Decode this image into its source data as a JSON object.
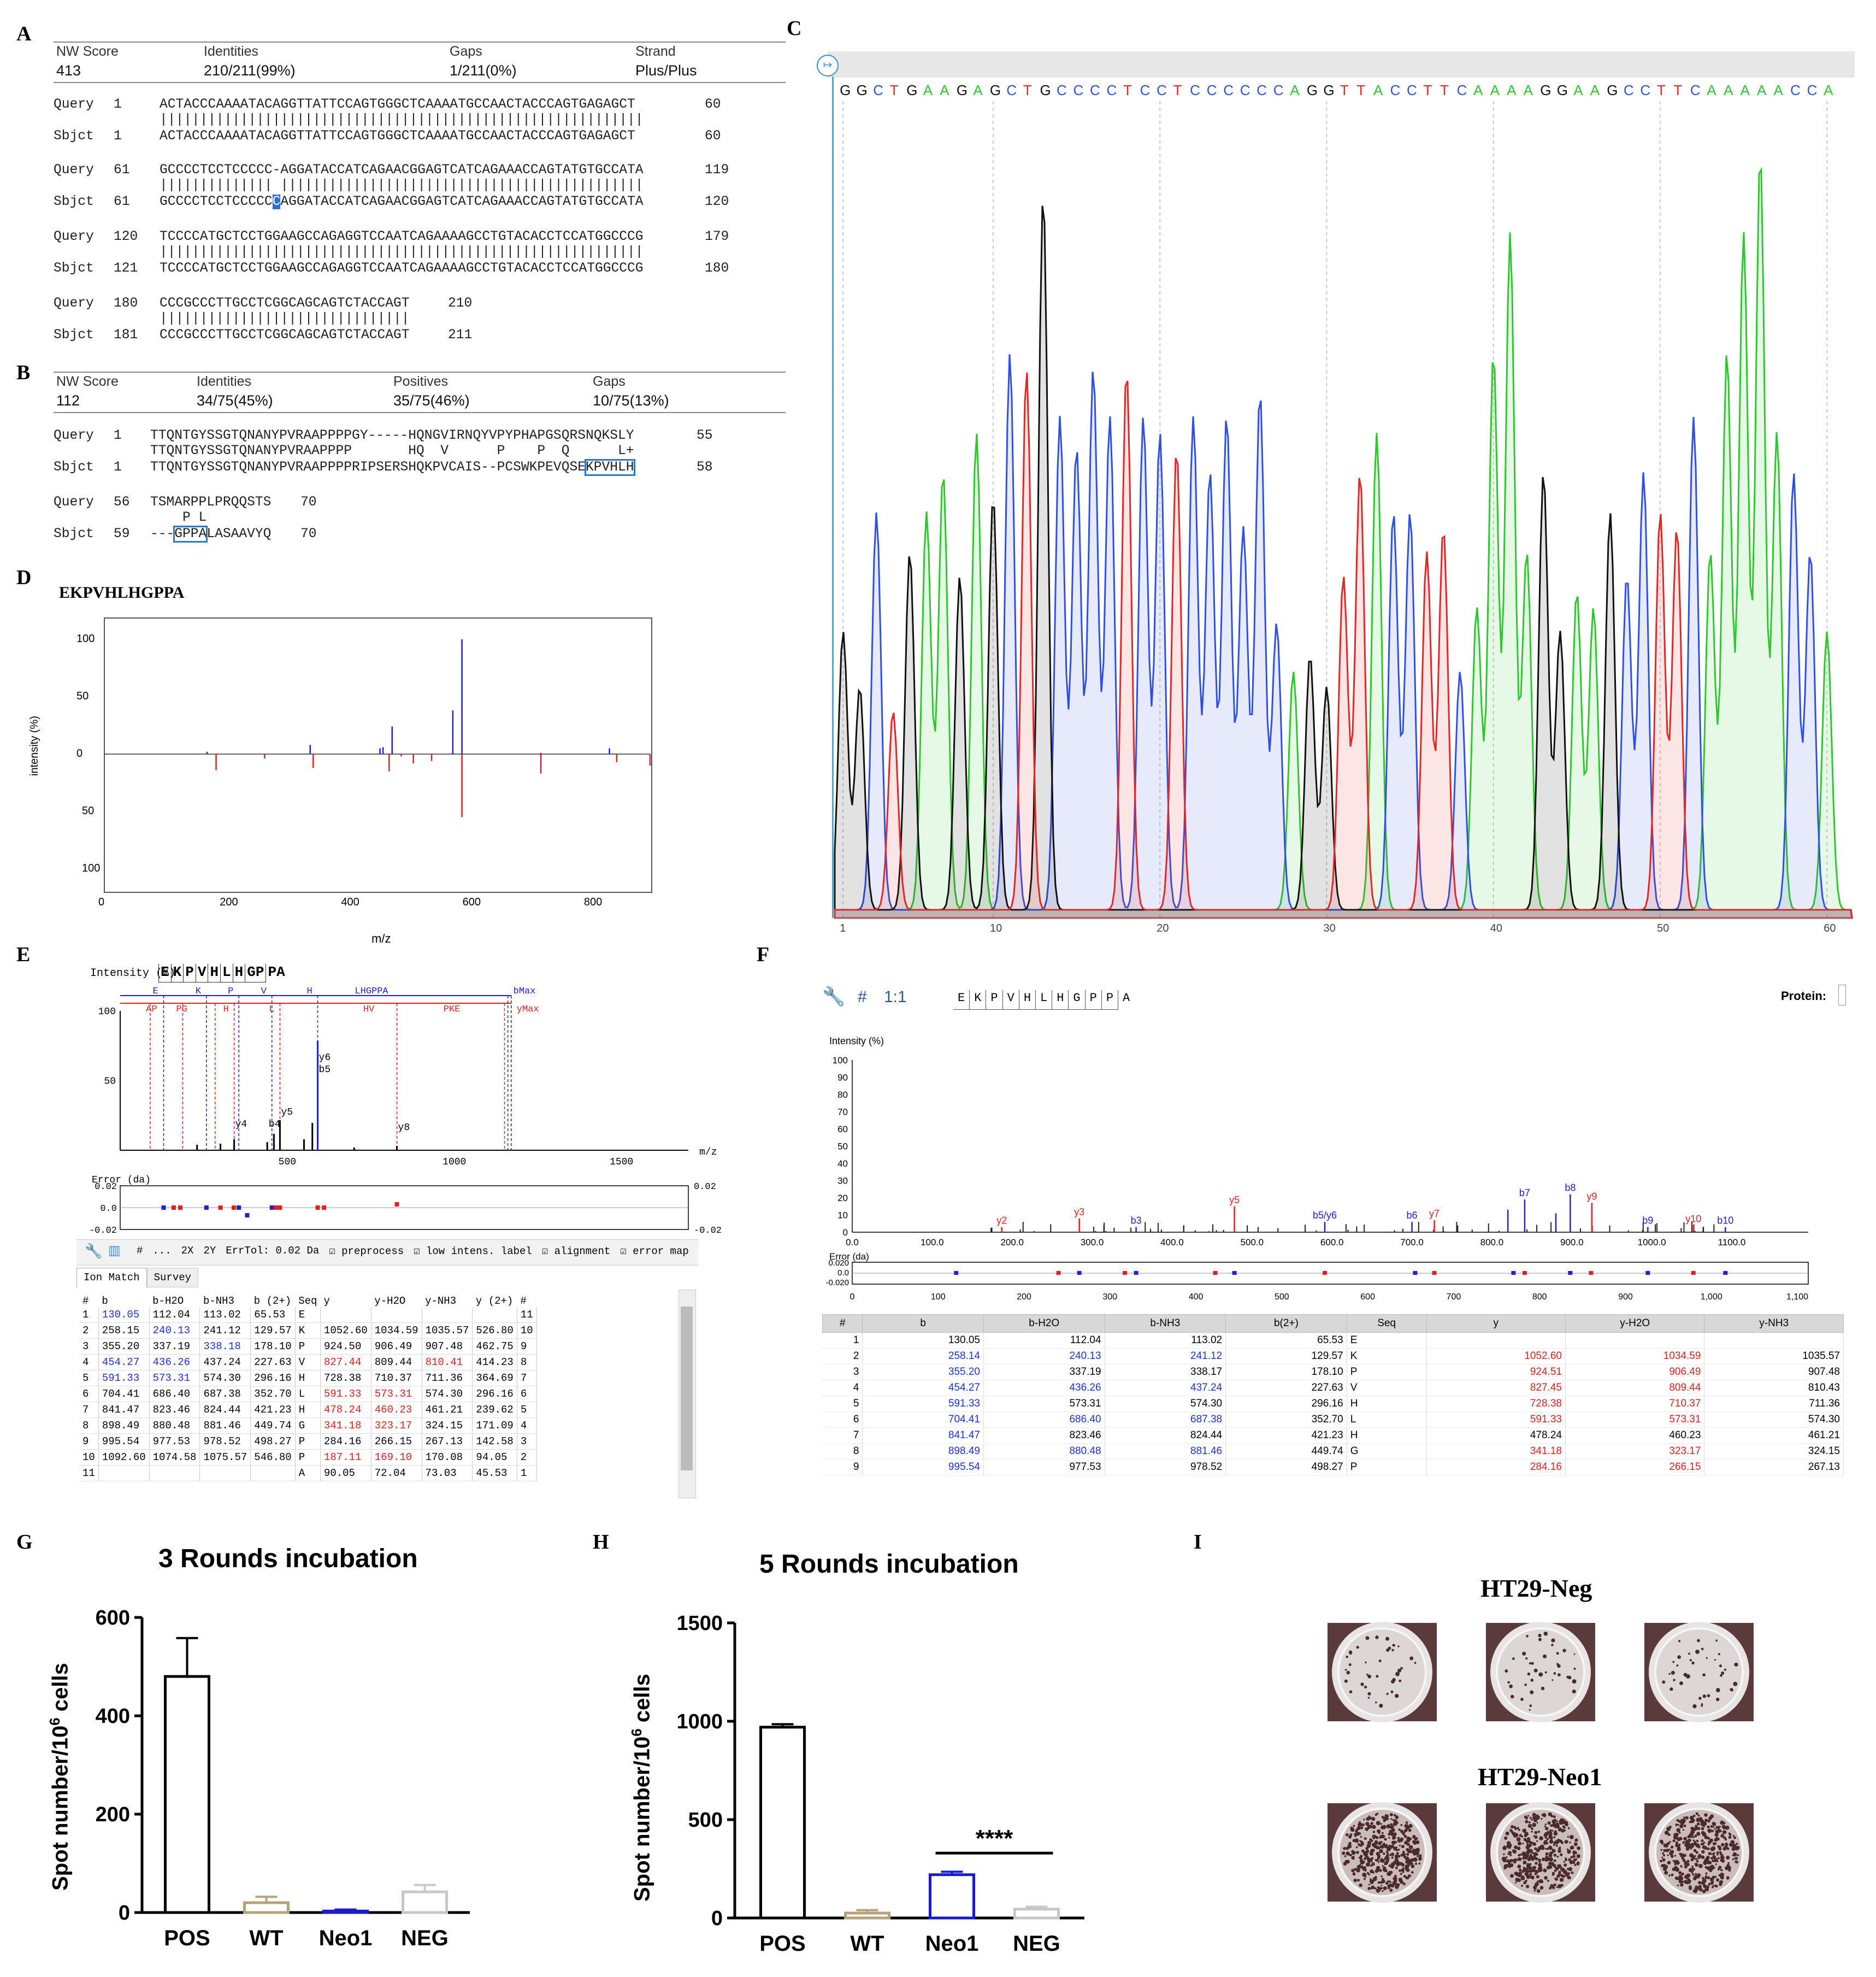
{
  "panels": {
    "A": "A",
    "B": "B",
    "C": "C",
    "D": "D",
    "E": "E",
    "F": "F",
    "G": "G",
    "H": "H",
    "I": "I"
  },
  "panelA": {
    "headers": [
      "NW Score",
      "Identities",
      "Gaps",
      "Strand"
    ],
    "values": [
      "413",
      "210/211(99%)",
      "1/211(0%)",
      "Plus/Plus"
    ],
    "blocks": [
      {
        "q_label": "Query",
        "q_start": "1",
        "q_seq": "ACTACCCAAAATACAGGTTATTCCAGTGGGCTCAAAATGCCAACTACCCAGTGAGAGCT",
        "q_end": "60",
        "mid": "||||||||||||||||||||||||||||||||||||||||||||||||||||||||||||",
        "s_label": "Sbjct",
        "s_start": "1",
        "s_seq": "ACTACCCAAAATACAGGTTATTCCAGTGGGCTCAAAATGCCAACTACCCAGTGAGAGCT",
        "s_end": "60"
      },
      {
        "q_label": "Query",
        "q_start": "61",
        "q_seq": "GCCCCTCCTCCCCC-AGGATACCATCAGAACGGAGTCATCAGAAACCAGTATGTGCCATA",
        "q_end": "119",
        "mid": "|||||||||||||| |||||||||||||||||||||||||||||||||||||||||||||",
        "s_label": "Sbjct",
        "s_start": "61",
        "s_pre": "GCCCCTCCTCCCCC",
        "s_hl": "C",
        "s_post": "AGGATACCATCAGAACGGAGTCATCAGAAACCAGTATGTGCCATA",
        "s_end": "120"
      },
      {
        "q_label": "Query",
        "q_start": "120",
        "q_seq": "TCCCCATGCTCCTGGAAGCCAGAGGTCCAATCAGAAAAGCCTGTACACCTCCATGGCCCG",
        "q_end": "179",
        "mid": "||||||||||||||||||||||||||||||||||||||||||||||||||||||||||||",
        "s_label": "Sbjct",
        "s_start": "121",
        "s_seq": "TCCCCATGCTCCTGGAAGCCAGAGGTCCAATCAGAAAAGCCTGTACACCTCCATGGCCCG",
        "s_end": "180"
      },
      {
        "q_label": "Query",
        "q_start": "180",
        "q_seq": "CCCGCCCTTGCCTCGGCAGCAGTCTACCAGT",
        "q_end": "210",
        "mid": "|||||||||||||||||||||||||||||||",
        "s_label": "Sbjct",
        "s_start": "181",
        "s_seq": "CCCGCCCTTGCCTCGGCAGCAGTCTACCAGT",
        "s_end": "211"
      }
    ]
  },
  "panelB": {
    "headers": [
      "NW Score",
      "Identities",
      "Positives",
      "Gaps"
    ],
    "values": [
      "112",
      "34/75(45%)",
      "35/75(46%)",
      "10/75(13%)"
    ],
    "b1": {
      "q_label": "Query",
      "q_start": "1",
      "q_seq": "TTQNTGYSSGTQNANYPVRAAPPPPGY-----HQNGVIRNQYVPYPHAPGSQRSNQKSLY",
      "q_end": "55",
      "mid": "TTQNTGYSSGTQNANYPVRAAPPPP       HQ  V      P    P  Q      L+",
      "s_label": "Sbjct",
      "s_start": "1",
      "s_pre": "TTQNTGYSSGTQNANYPVRAAPPPPRIPSERSHQKPVCAIS--PCSWKPEVQSE",
      "s_box": "KPVHLH",
      "s_end": "58"
    },
    "b2": {
      "q_label": "Query",
      "q_start": "56",
      "q_seq": "TSMARPPLPRQQSTS",
      "q_end": "70",
      "mid": "    P L",
      "s_label": "Sbjct",
      "s_start": "59",
      "s_pre": "---",
      "s_box": "GPPA",
      "s_post": "LASAAVYQ",
      "s_end": "70"
    }
  },
  "panelC": {
    "bases": [
      "G",
      "G",
      "C",
      "T",
      "G",
      "A",
      "A",
      "G",
      "A",
      "G",
      "C",
      "T",
      "G",
      "C",
      "C",
      "C",
      "C",
      "T",
      "C",
      "C",
      "T",
      "C",
      "C",
      "C",
      "C",
      "C",
      "C",
      "A",
      "G",
      "G",
      "T",
      "T",
      "A",
      "C",
      "C",
      "T",
      "T",
      "C",
      "A",
      "A",
      "A",
      "A",
      "G",
      "G",
      "A",
      "A",
      "G",
      "C",
      "C",
      "T",
      "T",
      "C",
      "A",
      "A",
      "A",
      "A",
      "A",
      "C",
      "C",
      "A"
    ],
    "ticks": [
      "1",
      "10",
      "20",
      "30",
      "40",
      "50",
      "60"
    ],
    "colors": {
      "A": "#2ec82e",
      "C": "#3050e0",
      "G": "#111111",
      "T": "#e02828"
    }
  },
  "panelD": {
    "title": "EKPVHLHGPPA",
    "ylabel": "intensity (%)",
    "xlabel": "m/z",
    "yticks_top": [
      "100",
      "50",
      "0"
    ],
    "yticks_bottom": [
      "50",
      "100"
    ],
    "xticks": [
      "0",
      "200",
      "400",
      "600",
      "800"
    ]
  },
  "panelE": {
    "header_label": "Intensity (%)",
    "seq_letters": [
      "E",
      "K",
      "P",
      "V",
      "H",
      "L",
      "H",
      "GP",
      "PA"
    ],
    "b_labels": [
      "E",
      "K",
      "P",
      "V",
      "H",
      "LHGPPA",
      "bMax"
    ],
    "y_labels": [
      "AP",
      "PG",
      "H",
      "L",
      "HV",
      "PKE",
      "yMax"
    ],
    "yticks": [
      "100",
      "50"
    ],
    "xticks": [
      "500",
      "1000",
      "1500"
    ],
    "xlabel": "m/z",
    "peak_labels": [
      "y6",
      "b5",
      "y5",
      "y4",
      "b4",
      "y8"
    ],
    "err_label": "Error (da)",
    "err_ticks_left": [
      "0.02",
      "0.0",
      "-0.02"
    ],
    "err_ticks_right": [
      "0.02",
      "-0.02"
    ],
    "toolbar": [
      "#",
      "...",
      "2X",
      "2Y",
      "ErrTol: 0.02 Da",
      "preprocess",
      "low intens. label",
      "alignment",
      "error map"
    ],
    "tabs": [
      "Ion Match",
      "Survey"
    ],
    "columns": [
      "#",
      "b",
      "b-H2O",
      "b-NH3",
      "b (2+)",
      "Seq",
      "y",
      "y-H2O",
      "y-NH3",
      "y (2+)",
      "#"
    ],
    "rows": [
      [
        "1",
        "130.05",
        "112.04",
        "113.02",
        "65.53",
        "E",
        "",
        "",
        "",
        "",
        "11"
      ],
      [
        "2",
        "258.15",
        "240.13",
        "241.12",
        "129.57",
        "K",
        "1052.60",
        "1034.59",
        "1035.57",
        "526.80",
        "10"
      ],
      [
        "3",
        "355.20",
        "337.19",
        "338.18",
        "178.10",
        "P",
        "924.50",
        "906.49",
        "907.48",
        "462.75",
        "9"
      ],
      [
        "4",
        "454.27",
        "436.26",
        "437.24",
        "227.63",
        "V",
        "827.44",
        "809.44",
        "810.41",
        "414.23",
        "8"
      ],
      [
        "5",
        "591.33",
        "573.31",
        "574.30",
        "296.16",
        "H",
        "728.38",
        "710.37",
        "711.36",
        "364.69",
        "7"
      ],
      [
        "6",
        "704.41",
        "686.40",
        "687.38",
        "352.70",
        "L",
        "591.33",
        "573.31",
        "574.30",
        "296.16",
        "6"
      ],
      [
        "7",
        "841.47",
        "823.46",
        "824.44",
        "421.23",
        "H",
        "478.24",
        "460.23",
        "461.21",
        "239.62",
        "5"
      ],
      [
        "8",
        "898.49",
        "880.48",
        "881.46",
        "449.74",
        "G",
        "341.18",
        "323.17",
        "324.15",
        "171.09",
        "4"
      ],
      [
        "9",
        "995.54",
        "977.53",
        "978.52",
        "498.27",
        "P",
        "284.16",
        "266.15",
        "267.13",
        "142.58",
        "3"
      ],
      [
        "10",
        "1092.60",
        "1074.58",
        "1075.57",
        "546.80",
        "P",
        "187.11",
        "169.10",
        "170.08",
        "94.05",
        "2"
      ],
      [
        "11",
        "",
        "",
        "",
        "",
        "A",
        "90.05",
        "72.04",
        "73.03",
        "45.53",
        "1"
      ]
    ]
  },
  "panelF": {
    "hash": "#",
    "ratio": "1:1",
    "seq_letters": [
      "E",
      "K",
      "P",
      "V",
      "H",
      "L",
      "H",
      "G",
      "P",
      "P",
      "A"
    ],
    "protein_label": "Protein:",
    "ylabel": "Intensity (%)",
    "yticks": [
      "100",
      "90",
      "80",
      "70",
      "60",
      "50",
      "40",
      "30",
      "20",
      "10",
      "0"
    ],
    "xticks": [
      "0.0",
      "100.0",
      "200.0",
      "300.0",
      "400.0",
      "500.0",
      "600.0",
      "700.0",
      "800.0",
      "900.0",
      "1000.0",
      "1100.0"
    ],
    "err_label": "Error (da)",
    "err_ticks": [
      "0.020",
      "0.0",
      "-0.020"
    ],
    "err_xticks": [
      "0",
      "100",
      "200",
      "300",
      "400",
      "500",
      "600",
      "700",
      "800",
      "900",
      "1,000",
      "1,100"
    ],
    "peak_labels": [
      "y2",
      "y3",
      "b3",
      "y5",
      "b5/y6",
      "b6",
      "y7",
      "b7",
      "b8",
      "y9",
      "b9",
      "y10",
      "b10"
    ],
    "columns": [
      "#",
      "b",
      "b-H2O",
      "b-NH3",
      "b(2+)",
      "Seq",
      "y",
      "y-H2O",
      "y-NH3"
    ],
    "rows": [
      [
        "1",
        "130.05",
        "112.04",
        "113.02",
        "65.53",
        "E",
        "",
        "",
        ""
      ],
      [
        "2",
        "258.14",
        "240.13",
        "241.12",
        "129.57",
        "K",
        "1052.60",
        "1034.59",
        "1035.57"
      ],
      [
        "3",
        "355.20",
        "337.19",
        "338.17",
        "178.10",
        "P",
        "924.51",
        "906.49",
        "907.48"
      ],
      [
        "4",
        "454.27",
        "436.26",
        "437.24",
        "227.63",
        "V",
        "827.45",
        "809.44",
        "810.43"
      ],
      [
        "5",
        "591.33",
        "573.31",
        "574.30",
        "296.16",
        "H",
        "728.38",
        "710.37",
        "711.36"
      ],
      [
        "6",
        "704.41",
        "686.40",
        "687.38",
        "352.70",
        "L",
        "591.33",
        "573.31",
        "574.30"
      ],
      [
        "7",
        "841.47",
        "823.46",
        "824.44",
        "421.23",
        "H",
        "478.24",
        "460.23",
        "461.21"
      ],
      [
        "8",
        "898.49",
        "880.48",
        "881.46",
        "449.74",
        "G",
        "341.18",
        "323.17",
        "324.15"
      ],
      [
        "9",
        "995.54",
        "977.53",
        "978.52",
        "498.27",
        "P",
        "284.16",
        "266.15",
        "267.13"
      ]
    ]
  },
  "chart_data": [
    {
      "type": "bar",
      "title": "3 Rounds incubation",
      "ylabel": "Spot number/10^6 cells",
      "categories": [
        "POS",
        "WT",
        "Neo1",
        "NEG"
      ],
      "values": [
        480,
        20,
        3,
        42
      ],
      "errors": [
        78,
        12,
        3,
        14
      ],
      "ylim": [
        0,
        600
      ],
      "yticks": [
        "0",
        "200",
        "400",
        "600"
      ],
      "colors": [
        "#000000",
        "#b5a27a",
        "#1a1acc",
        "#c8c8c8"
      ]
    },
    {
      "type": "bar",
      "title": "5 Rounds incubation",
      "ylabel": "Spot number/10^6 cells",
      "categories": [
        "POS",
        "WT",
        "Neo1",
        "NEG"
      ],
      "values": [
        970,
        25,
        220,
        45
      ],
      "errors": [
        15,
        15,
        15,
        12
      ],
      "ylim": [
        0,
        1500
      ],
      "yticks": [
        "0",
        "500",
        "1000",
        "1500"
      ],
      "colors": [
        "#000000",
        "#b5a27a",
        "#1a1acc",
        "#c8c8c8"
      ],
      "significance": "****"
    }
  ],
  "panelI": {
    "top": "HT29-Neg",
    "bottom": "HT29-Neo1"
  }
}
